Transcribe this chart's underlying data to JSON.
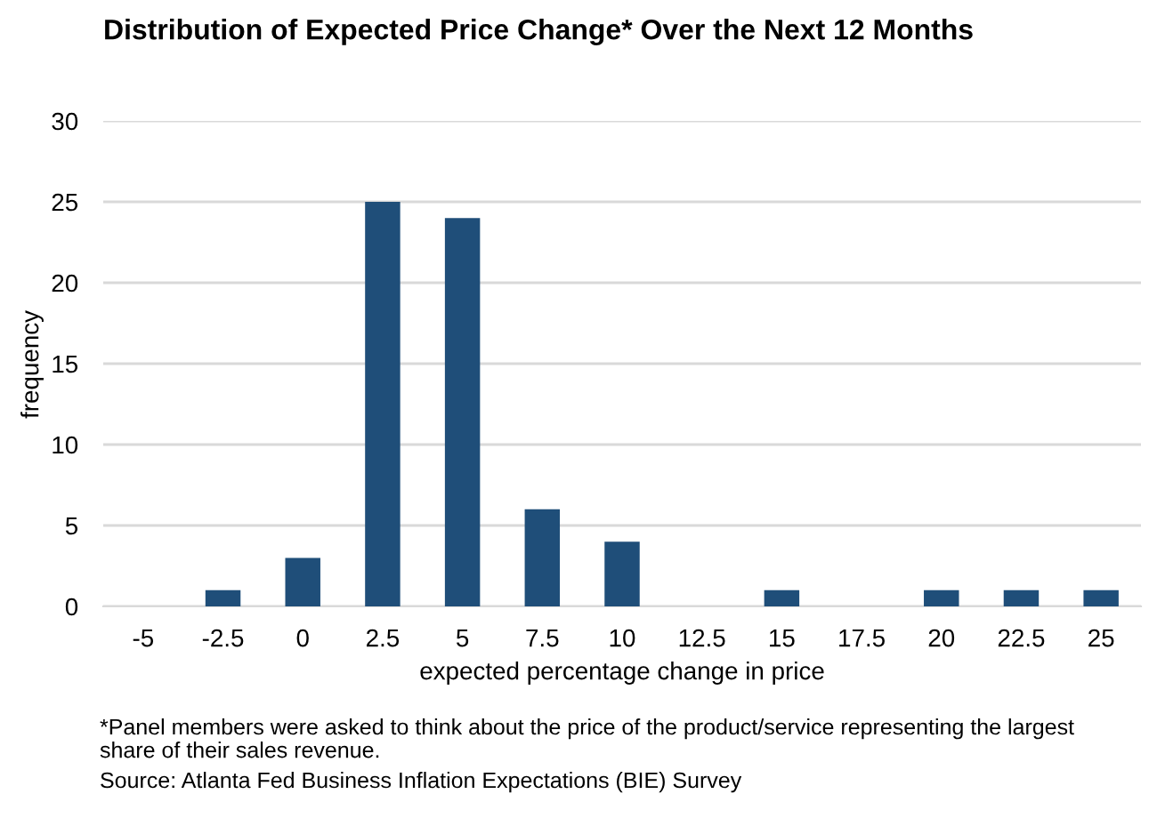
{
  "chart_data": {
    "type": "bar",
    "title": "Distribution of Expected Price Change* Over the Next 12 Months",
    "xlabel": "expected percentage change in price",
    "ylabel": "frequency",
    "categories": [
      "-5",
      "-2.5",
      "0",
      "2.5",
      "5",
      "7.5",
      "10",
      "12.5",
      "15",
      "17.5",
      "20",
      "22.5",
      "25"
    ],
    "values": [
      0,
      1,
      3,
      25,
      24,
      6,
      4,
      0,
      1,
      0,
      1,
      1,
      1
    ],
    "color": "#1f4e79",
    "ylim": [
      0,
      30
    ],
    "yticks": [
      0,
      5,
      10,
      15,
      20,
      25,
      30
    ],
    "grid": "y",
    "annotations": [
      "*Panel members were asked to think about the price of the product/service representing the largest\nshare of their sales revenue.",
      "Source: Atlanta Fed Business Inflation Expectations (BIE) Survey"
    ]
  }
}
